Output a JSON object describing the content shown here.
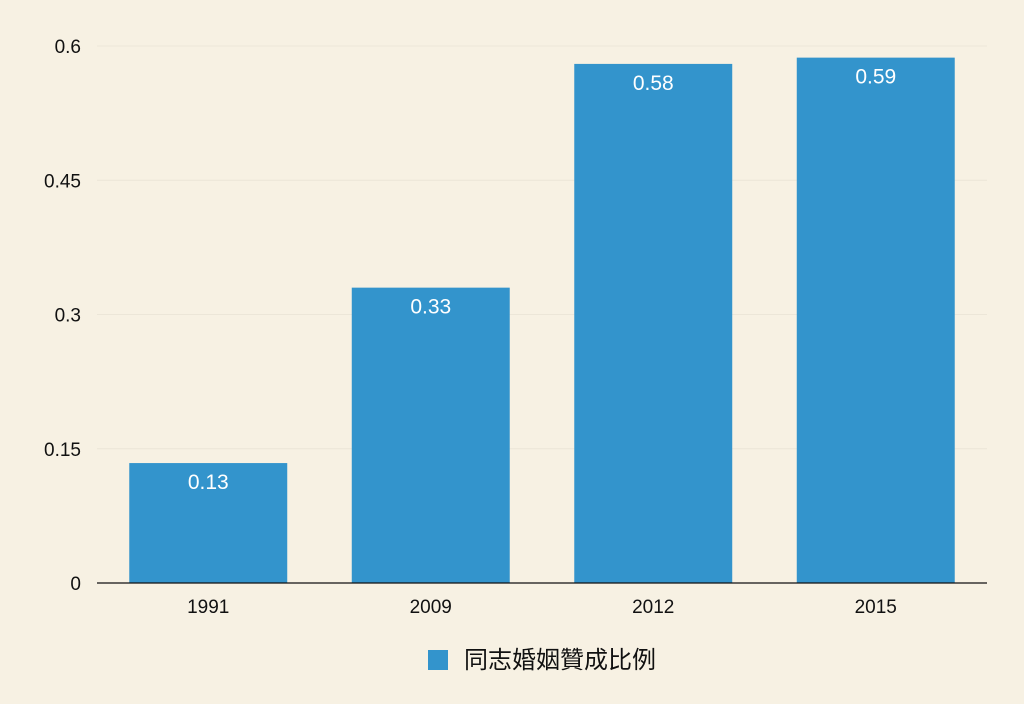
{
  "colors": {
    "background": "#f7f1e3",
    "bar": "#3394cc",
    "gridline": "#ece6d8",
    "axis": "#111111",
    "data_label": "#ffffff"
  },
  "chart_data": {
    "type": "bar",
    "title": "",
    "xlabel": "",
    "ylabel": "",
    "categories": [
      "1991",
      "2009",
      "2012",
      "2015"
    ],
    "series": [
      {
        "name": "同志婚姻贊成比例",
        "color": "#3394cc",
        "values": [
          0.134,
          0.33,
          0.58,
          0.587
        ],
        "data_labels": [
          "0.13",
          "0.33",
          "0.58",
          "0.59"
        ]
      }
    ],
    "ylim": [
      0,
      0.6
    ],
    "yticks": [
      0,
      0.15,
      0.3,
      0.45,
      0.6
    ],
    "ytick_labels": [
      "0",
      "0.15",
      "0.3",
      "0.45",
      "0.6"
    ],
    "grid": true,
    "legend_position": "bottom-center"
  }
}
